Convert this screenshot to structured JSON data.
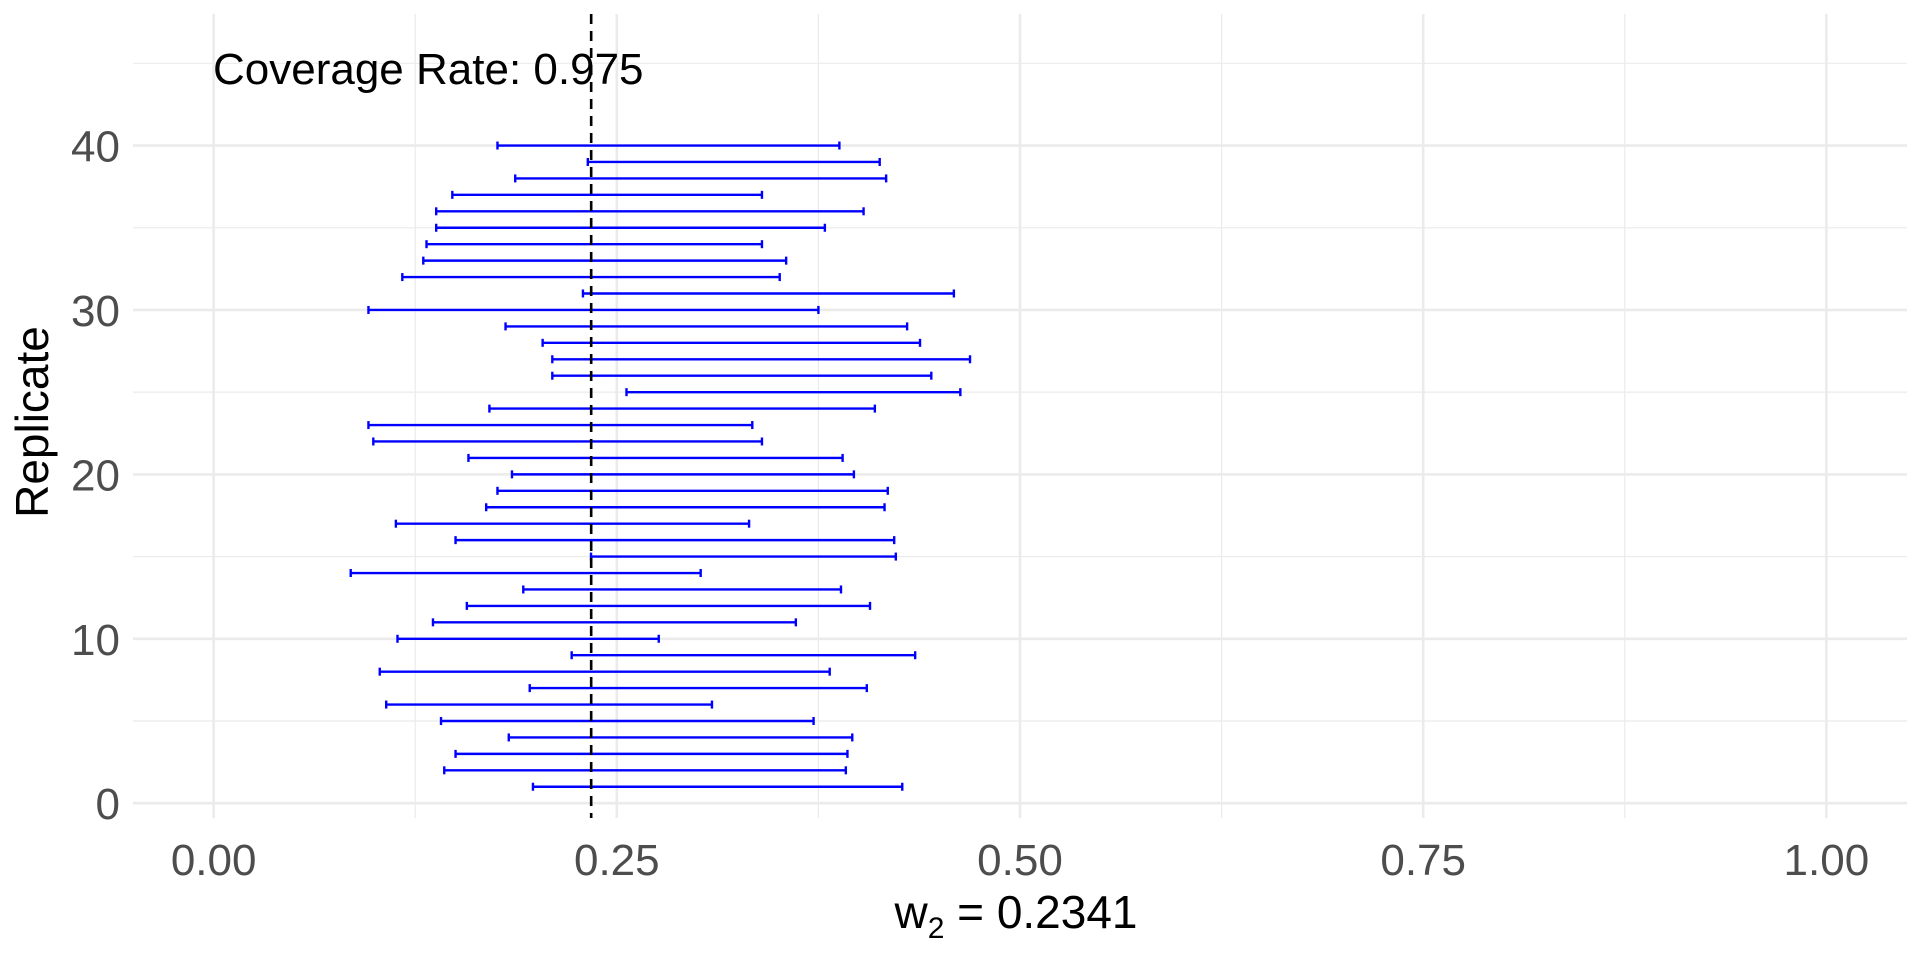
{
  "chart_data": {
    "type": "errorbar",
    "annotation": "Coverage Rate: 0.975",
    "xlabel": {
      "base": "w",
      "subscript": "2",
      "rest": " = 0.2341"
    },
    "ylabel": "Replicate",
    "xlim": [
      -0.05,
      1.05
    ],
    "ylim": [
      -0.9,
      48
    ],
    "x_ticks": [
      0,
      0.25,
      0.5,
      0.75,
      1
    ],
    "x_tick_labels": [
      "0.00",
      "0.25",
      "0.50",
      "0.75",
      "1.00"
    ],
    "y_ticks": [
      0,
      10,
      20,
      30,
      40
    ],
    "y_tick_labels": [
      "0",
      "10",
      "20",
      "30",
      "40"
    ],
    "reference_x": 0.2341,
    "grid": true,
    "colors": {
      "interval": "#0000ff",
      "reference": "#000000",
      "grid": "#ebebeb"
    },
    "intervals": [
      {
        "y": 1,
        "lo": 0.198,
        "hi": 0.427
      },
      {
        "y": 2,
        "lo": 0.143,
        "hi": 0.392
      },
      {
        "y": 3,
        "lo": 0.15,
        "hi": 0.393
      },
      {
        "y": 4,
        "lo": 0.183,
        "hi": 0.396
      },
      {
        "y": 5,
        "lo": 0.141,
        "hi": 0.372
      },
      {
        "y": 6,
        "lo": 0.107,
        "hi": 0.309
      },
      {
        "y": 7,
        "lo": 0.196,
        "hi": 0.405
      },
      {
        "y": 8,
        "lo": 0.103,
        "hi": 0.382
      },
      {
        "y": 9,
        "lo": 0.222,
        "hi": 0.435
      },
      {
        "y": 10,
        "lo": 0.114,
        "hi": 0.276
      },
      {
        "y": 11,
        "lo": 0.136,
        "hi": 0.361
      },
      {
        "y": 12,
        "lo": 0.157,
        "hi": 0.407
      },
      {
        "y": 13,
        "lo": 0.192,
        "hi": 0.389
      },
      {
        "y": 14,
        "lo": 0.085,
        "hi": 0.302
      },
      {
        "y": 15,
        "lo": 0.234,
        "hi": 0.423
      },
      {
        "y": 16,
        "lo": 0.15,
        "hi": 0.422
      },
      {
        "y": 17,
        "lo": 0.113,
        "hi": 0.332
      },
      {
        "y": 18,
        "lo": 0.169,
        "hi": 0.416
      },
      {
        "y": 19,
        "lo": 0.176,
        "hi": 0.418
      },
      {
        "y": 20,
        "lo": 0.185,
        "hi": 0.397
      },
      {
        "y": 21,
        "lo": 0.158,
        "hi": 0.39
      },
      {
        "y": 22,
        "lo": 0.099,
        "hi": 0.34
      },
      {
        "y": 23,
        "lo": 0.096,
        "hi": 0.334
      },
      {
        "y": 24,
        "lo": 0.171,
        "hi": 0.41
      },
      {
        "y": 25,
        "lo": 0.256,
        "hi": 0.463
      },
      {
        "y": 26,
        "lo": 0.21,
        "hi": 0.445
      },
      {
        "y": 27,
        "lo": 0.21,
        "hi": 0.469
      },
      {
        "y": 28,
        "lo": 0.204,
        "hi": 0.438
      },
      {
        "y": 29,
        "lo": 0.181,
        "hi": 0.43
      },
      {
        "y": 30,
        "lo": 0.096,
        "hi": 0.375
      },
      {
        "y": 31,
        "lo": 0.229,
        "hi": 0.459
      },
      {
        "y": 32,
        "lo": 0.117,
        "hi": 0.351
      },
      {
        "y": 33,
        "lo": 0.13,
        "hi": 0.355
      },
      {
        "y": 34,
        "lo": 0.132,
        "hi": 0.34
      },
      {
        "y": 35,
        "lo": 0.138,
        "hi": 0.379
      },
      {
        "y": 36,
        "lo": 0.138,
        "hi": 0.403
      },
      {
        "y": 37,
        "lo": 0.148,
        "hi": 0.34
      },
      {
        "y": 38,
        "lo": 0.187,
        "hi": 0.417
      },
      {
        "y": 39,
        "lo": 0.232,
        "hi": 0.413
      },
      {
        "y": 40,
        "lo": 0.176,
        "hi": 0.388
      }
    ]
  }
}
